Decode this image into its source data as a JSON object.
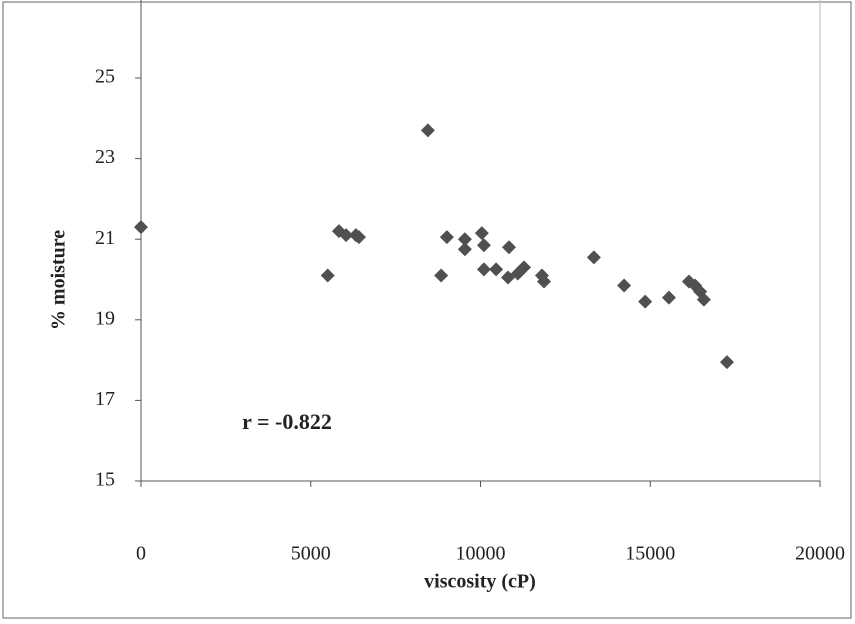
{
  "chart_data": {
    "type": "scatter",
    "xlabel": "viscosity (cP)",
    "ylabel": "% moisture",
    "annotation": "r = -0.822",
    "color": "#505050",
    "xlim": [
      0,
      20000
    ],
    "xticks": [
      0,
      5000,
      10000,
      15000,
      20000
    ],
    "ylim": [
      15,
      25
    ],
    "yticks": [
      15,
      17,
      19,
      21,
      23,
      25
    ],
    "x": [
      0,
      5500,
      5830,
      6040,
      6330,
      6420,
      8450,
      8840,
      9010,
      9540,
      9540,
      10040,
      10100,
      10100,
      10460,
      10810,
      10840,
      11100,
      11280,
      11810,
      11870,
      13340,
      14230,
      14850,
      15550,
      16140,
      16320,
      16470,
      16580,
      17260
    ],
    "values": [
      21.3,
      20.1,
      21.2,
      21.1,
      21.1,
      21.05,
      23.7,
      20.1,
      21.05,
      21.0,
      20.75,
      21.15,
      20.85,
      20.25,
      20.25,
      20.05,
      20.8,
      20.15,
      20.3,
      20.1,
      19.95,
      20.55,
      19.85,
      19.45,
      19.55,
      19.95,
      19.85,
      19.7,
      19.5,
      17.95
    ]
  }
}
